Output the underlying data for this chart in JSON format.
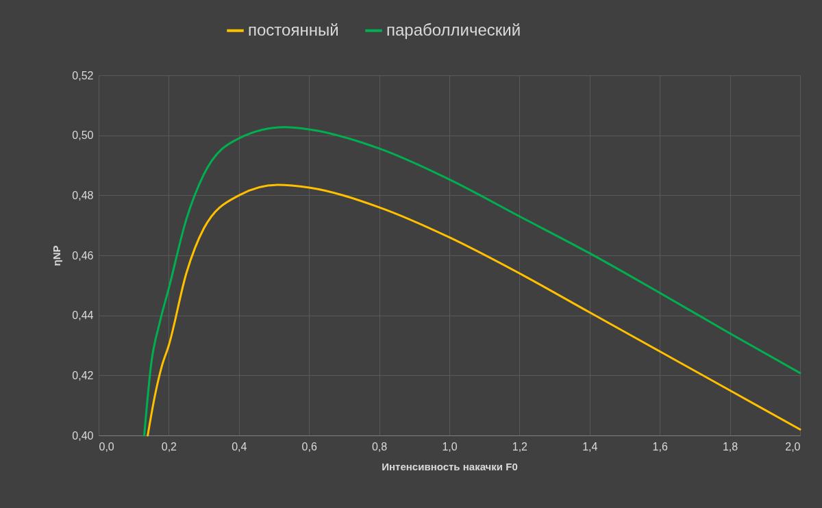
{
  "chart_data": {
    "type": "line",
    "xlabel": "Интенсивность накачки F0",
    "ylabel": "ηNP",
    "xlim": [
      0,
      2
    ],
    "xticks": [
      {
        "value": 0,
        "label": "0,0"
      },
      {
        "value": 0.2,
        "label": "0,2"
      },
      {
        "value": 0.4,
        "label": "0,4"
      },
      {
        "value": 0.6,
        "label": "0,6"
      },
      {
        "value": 0.8,
        "label": "0,8"
      },
      {
        "value": 1.0,
        "label": "1,0"
      },
      {
        "value": 1.2,
        "label": "1,2"
      },
      {
        "value": 1.4,
        "label": "1,4"
      },
      {
        "value": 1.6,
        "label": "1,6"
      },
      {
        "value": 1.8,
        "label": "1,8"
      },
      {
        "value": 2.0,
        "label": "2,0"
      }
    ],
    "ylim": [
      0.4,
      0.52
    ],
    "yticks": [
      {
        "value": 0.4,
        "label": "0,40"
      },
      {
        "value": 0.42,
        "label": "0,42"
      },
      {
        "value": 0.44,
        "label": "0,44"
      },
      {
        "value": 0.46,
        "label": "0,46"
      },
      {
        "value": 0.48,
        "label": "0,48"
      },
      {
        "value": 0.5,
        "label": "0,50"
      },
      {
        "value": 0.52,
        "label": "0,52"
      }
    ],
    "grid": true,
    "legend": "top",
    "marker": "none",
    "line_style": "solid",
    "series": [
      {
        "name": "постоянный",
        "color": "#ffc000",
        "x": [
          0.14,
          0.16,
          0.18,
          0.2,
          0.25,
          0.3,
          0.4,
          0.51,
          0.6,
          0.8,
          1.0,
          1.2,
          1.4,
          1.6,
          1.8,
          2.0
        ],
        "values": [
          0.4,
          0.413,
          0.423,
          0.43,
          0.454,
          0.469,
          0.48,
          0.4835,
          0.4826,
          0.476,
          0.466,
          0.454,
          0.441,
          0.428,
          0.415,
          0.402
        ]
      },
      {
        "name": "параболлический",
        "color": "#00b050",
        "x": [
          0.13,
          0.15,
          0.175,
          0.2,
          0.25,
          0.3,
          0.4,
          0.53,
          0.6,
          0.8,
          1.0,
          1.2,
          1.4,
          1.6,
          1.8,
          2.0
        ],
        "values": [
          0.4,
          0.424,
          0.438,
          0.449,
          0.472,
          0.487,
          0.499,
          0.5027,
          0.502,
          0.4956,
          0.4853,
          0.473,
          0.4607,
          0.4475,
          0.434,
          0.4208
        ]
      }
    ]
  }
}
